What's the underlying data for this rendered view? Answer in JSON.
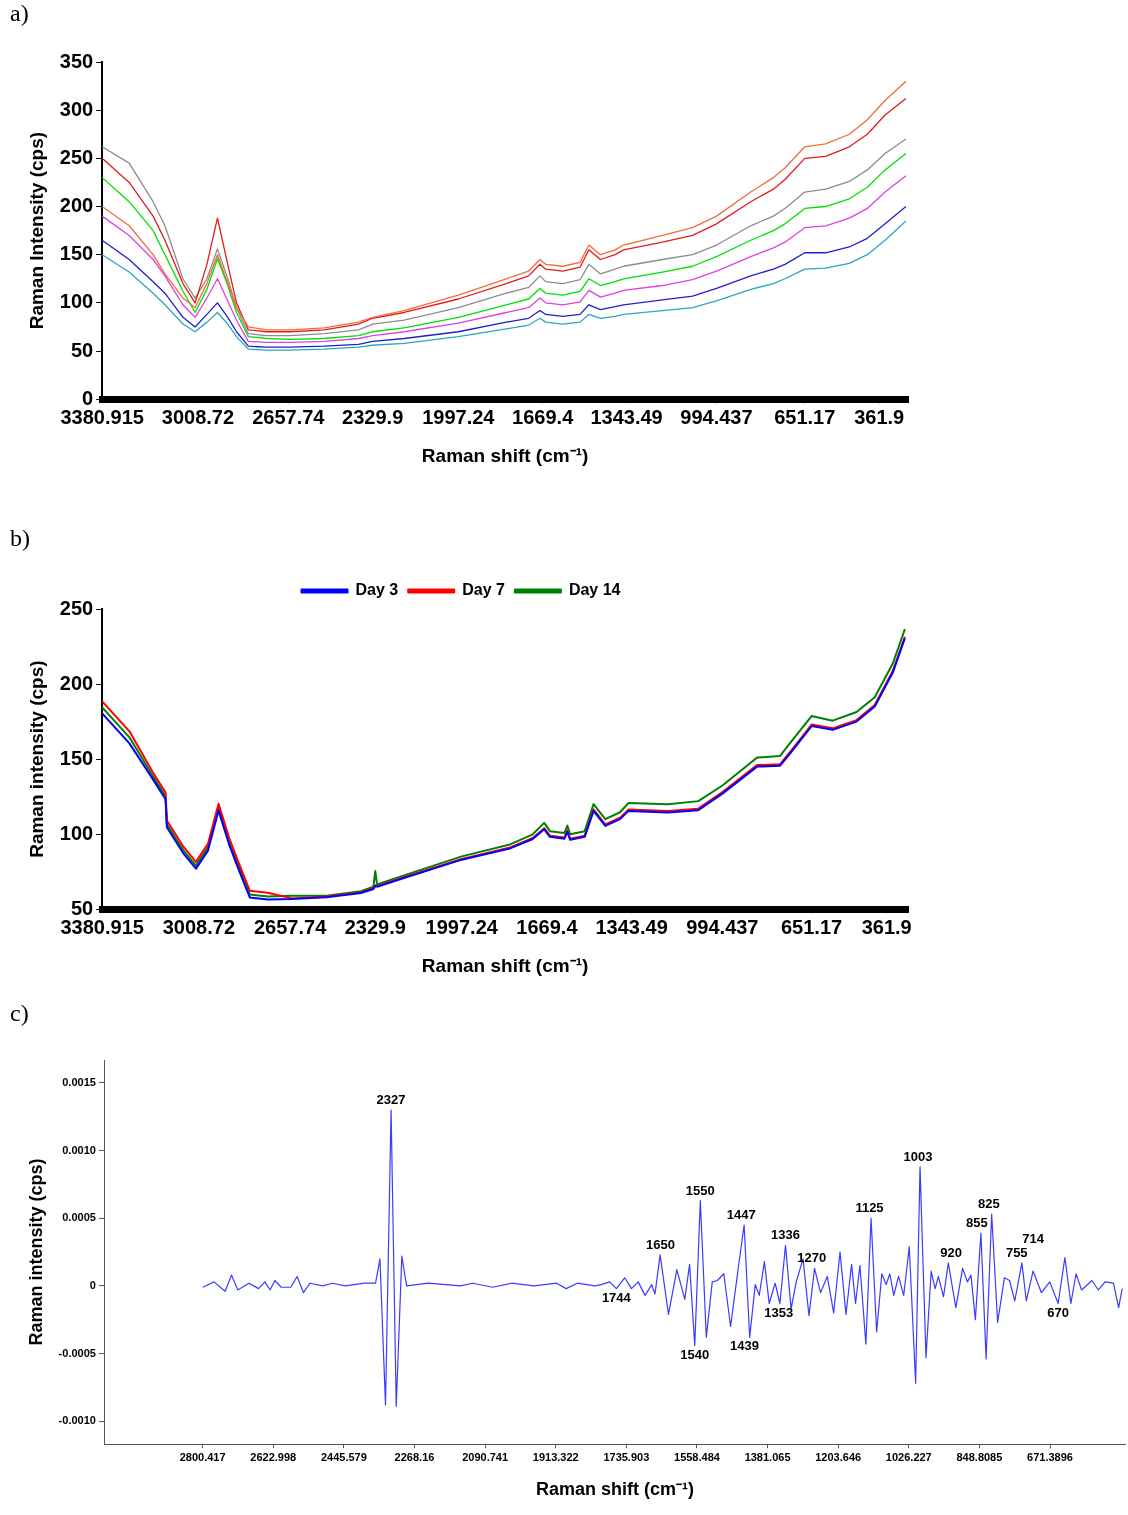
{
  "chart_data": [
    {
      "type": "line",
      "title": "a)",
      "xlabel": "Raman shift (cm⁻¹)",
      "ylabel": "Raman Intensity (cps)",
      "x": [
        3380.915,
        3276,
        3183,
        3137,
        3067,
        3020,
        2974,
        2933,
        2893,
        2859,
        2813,
        2743,
        2651,
        2518,
        2385,
        2330,
        2208,
        1997,
        1811,
        1724,
        1680,
        1658,
        1591,
        1524,
        1490,
        1445,
        1388,
        1355,
        1204,
        1087,
        994,
        861,
        773,
        728,
        651,
        570,
        478,
        408,
        339,
        258
      ],
      "xlim": [
        3380.915,
        250
      ],
      "xticks": [
        3380.915,
        3008.72,
        2657.74,
        2329.9,
        1997.24,
        1669.4,
        1343.49,
        994.437,
        651.17,
        361.9
      ],
      "ylim": [
        0,
        350
      ],
      "yticks": [
        0,
        50,
        100,
        150,
        200,
        250,
        300,
        350
      ],
      "series": [
        {
          "color": "#f26b3a",
          "values": [
            200,
            180,
            150,
            130,
            105,
            95,
            120,
            150,
            120,
            95,
            75,
            72,
            72,
            74,
            80,
            85,
            92,
            108,
            125,
            133,
            145,
            140,
            138,
            142,
            160,
            150,
            155,
            160,
            170,
            178,
            190,
            215,
            230,
            240,
            262,
            265,
            275,
            290,
            310,
            330
          ]
        },
        {
          "color": "#e41a1c",
          "values": [
            250,
            225,
            190,
            165,
            120,
            100,
            140,
            188,
            140,
            100,
            72,
            70,
            70,
            72,
            78,
            84,
            90,
            104,
            120,
            128,
            140,
            135,
            133,
            137,
            155,
            145,
            150,
            155,
            163,
            170,
            182,
            205,
            218,
            228,
            250,
            252,
            262,
            275,
            295,
            312
          ]
        },
        {
          "color": "#8c8c8c",
          "values": [
            262,
            245,
            205,
            180,
            125,
            105,
            125,
            156,
            125,
            95,
            68,
            66,
            66,
            68,
            72,
            78,
            82,
            95,
            110,
            116,
            128,
            122,
            120,
            124,
            140,
            130,
            135,
            138,
            145,
            150,
            160,
            180,
            190,
            198,
            215,
            218,
            226,
            238,
            255,
            270
          ]
        },
        {
          "color": "#00e000",
          "values": [
            230,
            205,
            175,
            150,
            112,
            90,
            114,
            146,
            118,
            90,
            65,
            63,
            62,
            63,
            66,
            70,
            74,
            85,
            98,
            104,
            115,
            110,
            108,
            112,
            125,
            118,
            122,
            125,
            132,
            138,
            148,
            165,
            175,
            182,
            198,
            200,
            208,
            220,
            238,
            255
          ]
        },
        {
          "color": "#e040e0",
          "values": [
            190,
            170,
            145,
            128,
            98,
            85,
            105,
            125,
            102,
            82,
            60,
            59,
            59,
            60,
            63,
            66,
            70,
            79,
            90,
            95,
            105,
            100,
            98,
            101,
            113,
            106,
            110,
            113,
            118,
            124,
            133,
            148,
            157,
            163,
            178,
            180,
            188,
            198,
            215,
            232
          ]
        },
        {
          "color": "#1f1fd0",
          "values": [
            165,
            145,
            122,
            110,
            85,
            75,
            88,
            100,
            85,
            70,
            55,
            54,
            54,
            55,
            57,
            60,
            63,
            70,
            80,
            84,
            92,
            88,
            86,
            88,
            98,
            93,
            96,
            98,
            103,
            107,
            115,
            128,
            135,
            140,
            152,
            152,
            158,
            167,
            182,
            200
          ]
        },
        {
          "color": "#27a8c0",
          "values": [
            150,
            132,
            110,
            98,
            78,
            70,
            80,
            90,
            78,
            65,
            52,
            51,
            51,
            52,
            54,
            56,
            58,
            65,
            73,
            77,
            84,
            80,
            78,
            80,
            88,
            84,
            86,
            88,
            92,
            95,
            102,
            114,
            120,
            125,
            135,
            136,
            141,
            150,
            165,
            185
          ]
        }
      ]
    },
    {
      "type": "line",
      "title": "b)",
      "xlabel": "Raman shift (cm⁻¹)",
      "ylabel": "Raman intensity (cps)",
      "legend": "top",
      "x": [
        3380.915,
        3276,
        3183,
        3137,
        3132,
        3067,
        3020,
        2974,
        2933,
        2893,
        2859,
        2813,
        2743,
        2651,
        2518,
        2385,
        2337,
        2330,
        2323,
        2208,
        1997,
        1811,
        1724,
        1680,
        1658,
        1602,
        1591,
        1580,
        1524,
        1490,
        1445,
        1388,
        1355,
        1204,
        1087,
        994,
        861,
        773,
        728,
        651,
        570,
        478,
        408,
        339,
        292
      ],
      "xlim": [
        3380.915,
        280
      ],
      "xticks": [
        3380.915,
        3008.72,
        2657.74,
        2329.9,
        1997.24,
        1669.4,
        1343.49,
        994.437,
        651.17,
        361.9
      ],
      "ylim": [
        50,
        250
      ],
      "yticks": [
        50,
        100,
        150,
        200,
        250
      ],
      "series": [
        {
          "name": "Day 3",
          "color": "#0000ff",
          "values": [
            180.5,
            160.5,
            135.8,
            123.3,
            104.6,
            86.8,
            77,
            89,
            115.7,
            93.4,
            77.8,
            57.8,
            56.4,
            56.8,
            58,
            60.8,
            63.5,
            65.5,
            65,
            71.5,
            83,
            90.5,
            96.8,
            103.2,
            98.2,
            97,
            101.5,
            96.2,
            98.2,
            115.5,
            105.5,
            110,
            115.5,
            114.5,
            116,
            127,
            145,
            145.5,
            155,
            172,
            169.5,
            175,
            185,
            207.5,
            230.5
          ]
        },
        {
          "name": "Day 7",
          "color": "#ff0000",
          "values": [
            188.5,
            168.5,
            140.3,
            127.8,
            109.1,
            91.3,
            81.5,
            93.5,
            120.2,
            97.9,
            82.3,
            62.3,
            60.9,
            57.2,
            58.5,
            61.2,
            64,
            66,
            65.5,
            72,
            83.5,
            91.2,
            97.5,
            104,
            99,
            97.8,
            102.5,
            97,
            99,
            116.5,
            106.5,
            111,
            116.5,
            115.5,
            117,
            128,
            146,
            146.5,
            156,
            173,
            170.5,
            176,
            186,
            208.5,
            231.5
          ]
        },
        {
          "name": "Day 14",
          "color": "#008000",
          "values": [
            184.5,
            164.5,
            137.8,
            125.3,
            106.6,
            88.8,
            79,
            91,
            117.7,
            95.4,
            79.8,
            59.8,
            58.4,
            59,
            59,
            62,
            65,
            75.4,
            66.5,
            73.2,
            85.2,
            93.2,
            99.9,
            107.5,
            102,
            100.8,
            105.7,
            99.9,
            102,
            120,
            110,
            114.6,
            120.8,
            120,
            122,
            132.4,
            151,
            152,
            162,
            178.7,
            175.6,
            181.4,
            191.2,
            213.5,
            236.6
          ]
        }
      ]
    },
    {
      "type": "line",
      "title": "c)",
      "xlabel": "Raman shift (cm⁻¹)",
      "ylabel": "Raman intensity (cps)",
      "x": [
        2800,
        2772,
        2744,
        2728,
        2712,
        2684,
        2660,
        2644,
        2631,
        2619,
        2603,
        2579,
        2563,
        2547,
        2531,
        2499,
        2475,
        2442,
        2394,
        2366,
        2355,
        2341,
        2327,
        2314,
        2300,
        2288,
        2233,
        2153,
        2121,
        2072,
        2024,
        1968,
        1911,
        1887,
        1859,
        1815,
        1799,
        1778,
        1761,
        1740,
        1723,
        1706,
        1689,
        1672,
        1664,
        1651,
        1630,
        1609,
        1589,
        1577,
        1564,
        1550,
        1535,
        1520,
        1507,
        1491,
        1474,
        1457,
        1440,
        1426,
        1412,
        1402,
        1389,
        1377,
        1362,
        1350,
        1336,
        1322,
        1309,
        1292,
        1277,
        1263,
        1248,
        1231,
        1215,
        1199,
        1184,
        1170,
        1160,
        1149,
        1134,
        1121,
        1107,
        1094,
        1083,
        1074,
        1064,
        1052,
        1039,
        1025,
        1009,
        998,
        983,
        970,
        960,
        952,
        939,
        927,
        908,
        891,
        879,
        870,
        859,
        845,
        832,
        818,
        803,
        786,
        773,
        760,
        742,
        731,
        714,
        693,
        672,
        651,
        634,
        619,
        606,
        592,
        566,
        550,
        533,
        512,
        499,
        490
      ],
      "xlim": [
        3046,
        483
      ],
      "xticks": [
        2800.417,
        2622.998,
        2445.579,
        2268.16,
        2090.741,
        1913.322,
        1735.903,
        1558.484,
        1381.065,
        1203.646,
        1026.227,
        848.8085,
        671.3896
      ],
      "ylim": [
        -0.00117,
        0.00167
      ],
      "yticks": [
        {
          "value": -0.001,
          "label": "-0.0010"
        },
        -0.0005,
        0,
        0.0005,
        {
          "value": 0.001,
          "label": "0.0010"
        },
        0.0015
      ],
      "series": [
        {
          "color": "#3b3bff",
          "values": [
            -1e-05,
            3e-05,
            -4e-05,
            8e-05,
            -3e-05,
            2e-05,
            -2e-05,
            3e-05,
            -3e-05,
            4e-05,
            -1e-05,
            -1e-05,
            7e-05,
            -5e-05,
            2e-05,
            0,
            2e-05,
            0,
            2e-05,
            2e-05,
            0.0002,
            -0.00088,
            0.0013,
            -0.00089,
            0.00022,
            0,
            2e-05,
            0,
            2e-05,
            -1e-05,
            2e-05,
            0,
            2e-05,
            -2e-05,
            2e-05,
            0,
            1e-05,
            3e-05,
            -2e-05,
            6e-05,
            -2e-05,
            3e-05,
            -7e-05,
            1e-05,
            -6e-05,
            0.00023,
            -0.00021,
            0.00012,
            -0.0001,
            0.00016,
            -0.00044,
            0.00063,
            -0.00038,
            3e-05,
            4e-05,
            9e-05,
            -0.0003,
            8e-05,
            0.00045,
            -0.00038,
            1e-05,
            -7e-05,
            0.00018,
            -0.00013,
            2e-05,
            -0.00013,
            0.0003,
            -0.00017,
            3e-05,
            0.0002,
            -0.00022,
            0.00013,
            -5e-05,
            7e-05,
            -0.0002,
            0.00025,
            -0.00021,
            0.00016,
            -0.00013,
            0.00015,
            -0.00043,
            0.0005,
            -0.00034,
            9e-05,
            1e-05,
            9e-05,
            -7e-05,
            7e-05,
            -7e-05,
            0.00029,
            -0.00072,
            0.00088,
            -0.00053,
            0.00011,
            -2e-05,
            7e-05,
            -8e-05,
            0.00017,
            -0.00016,
            0.00013,
            3e-05,
            8e-05,
            -0.00025,
            0.00039,
            -0.00054,
            0.00053,
            -0.00027,
            6e-05,
            4e-05,
            -0.00011,
            0.00017,
            -0.00011,
            0.00011,
            -5e-05,
            3e-05,
            -0.00013,
            0.00021,
            -0.00013,
            9e-05,
            -3e-05,
            4e-05,
            -3e-05,
            3e-05,
            2e-05,
            -0.00016,
            -2e-05
          ]
        }
      ],
      "annotations": [
        {
          "text": "2327",
          "x": 2327,
          "y": 0.0013
        },
        {
          "text": "1744",
          "x": 1761,
          "y": -2e-05
        },
        {
          "text": "1650",
          "x": 1650,
          "y": 0.00023
        },
        {
          "text": "1550",
          "x": 1550,
          "y": 0.00063
        },
        {
          "text": "1540",
          "x": 1564,
          "y": -0.00044
        },
        {
          "text": "1447",
          "x": 1447,
          "y": 0.00045
        },
        {
          "text": "1439",
          "x": 1439,
          "y": -0.00038
        },
        {
          "text": "1353",
          "x": 1353,
          "y": -0.00013
        },
        {
          "text": "1336",
          "x": 1336,
          "y": 0.0003
        },
        {
          "text": "1270",
          "x": 1270,
          "y": 0.00013
        },
        {
          "text": "1125",
          "x": 1125,
          "y": 0.0005
        },
        {
          "text": "1003",
          "x": 1003,
          "y": 0.00088
        },
        {
          "text": "920",
          "x": 920,
          "y": 0.00017
        },
        {
          "text": "855",
          "x": 855,
          "y": 0.00039
        },
        {
          "text": "825",
          "x": 825,
          "y": 0.00053
        },
        {
          "text": "755",
          "x": 755,
          "y": 0.00017
        },
        {
          "text": "714",
          "x": 714,
          "y": 0.00011
        },
        {
          "text": "670",
          "x": 651,
          "y": -0.00013
        }
      ]
    }
  ]
}
